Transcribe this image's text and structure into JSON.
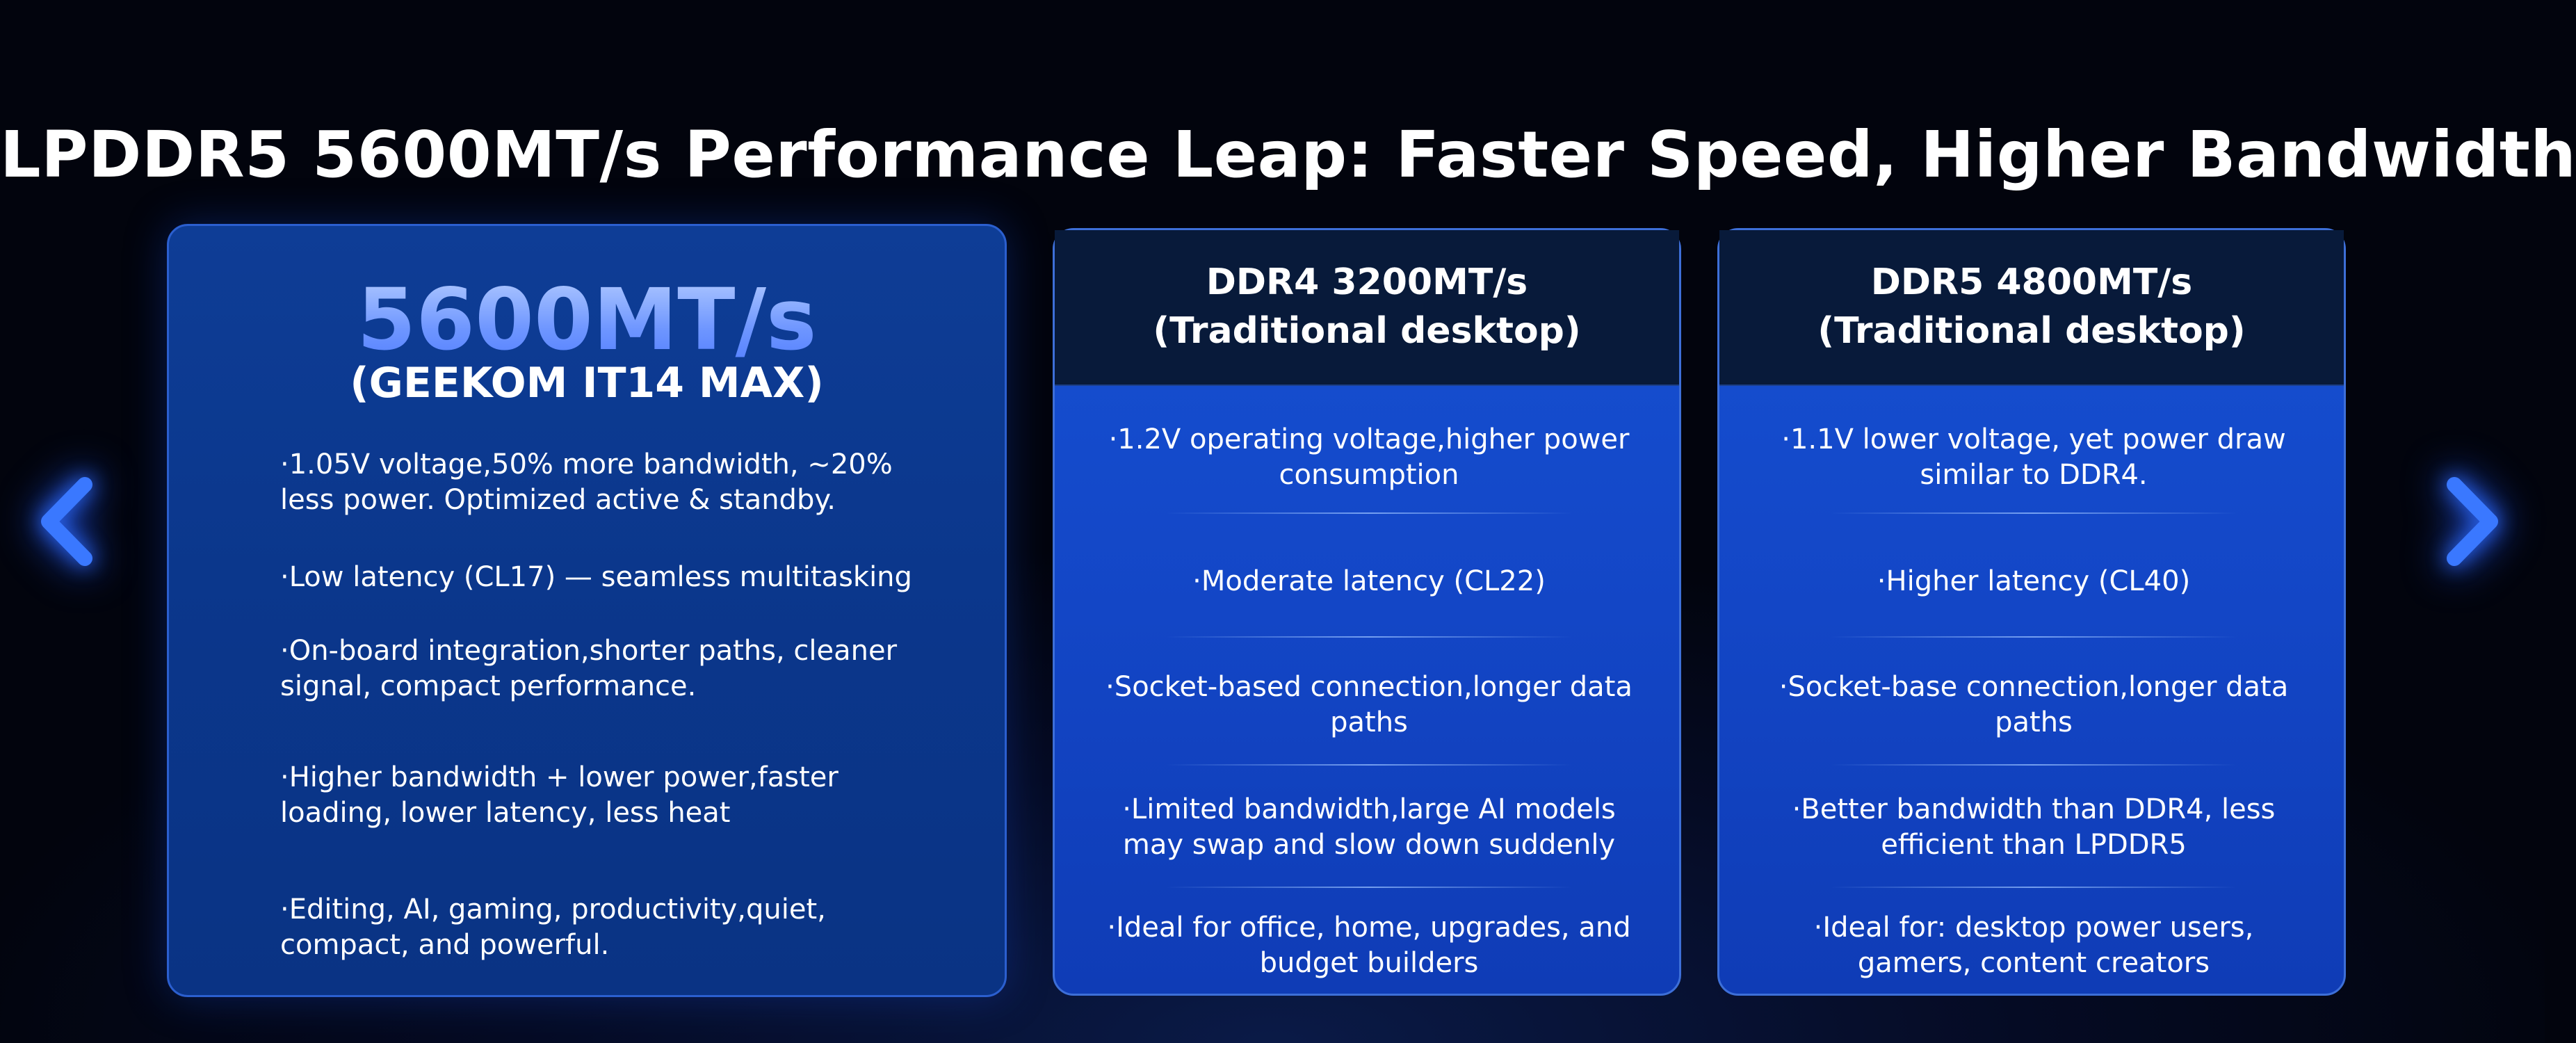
{
  "headline": "LPDDR5 5600MT/s Performance Leap: Faster Speed, Higher Bandwidth",
  "featured": {
    "speed": "5600MT/s",
    "product": "(GEEKOM IT14 MAX)",
    "bullets": [
      "·1.05V voltage,50% more bandwidth, ~20% less power. Optimized active & standby.",
      "·Low latency (CL17) — seamless multitasking",
      "·On-board integration,shorter paths, cleaner signal, compact performance.",
      "·Higher bandwidth + lower power,faster loading, lower latency, less heat",
      "·Editing, AI, gaming, productivity,quiet, compact, and powerful."
    ]
  },
  "cards": [
    {
      "title_line1": "DDR4 3200MT/s",
      "title_line2": "(Traditional desktop)",
      "rows": [
        "·1.2V operating voltage,higher power consumption",
        "·Moderate latency (CL22)",
        "·Socket-based connection,longer data paths",
        "·Limited bandwidth,large AI models may swap and slow down suddenly",
        "·Ideal for office, home, upgrades, and budget builders"
      ]
    },
    {
      "title_line1": "DDR5 4800MT/s",
      "title_line2": "(Traditional desktop)",
      "rows": [
        "·1.1V lower voltage, yet power draw similar to DDR4.",
        "·Higher latency (CL40)",
        "·Socket-base connection,longer data paths",
        "·Better bandwidth than DDR4, less efficient than LPDDR5",
        "·Ideal for: desktop power users, gamers, content creators"
      ]
    }
  ],
  "nav": {
    "prev_icon": "chevron-left-icon",
    "next_icon": "chevron-right-icon",
    "accent": "#2f6bff"
  }
}
